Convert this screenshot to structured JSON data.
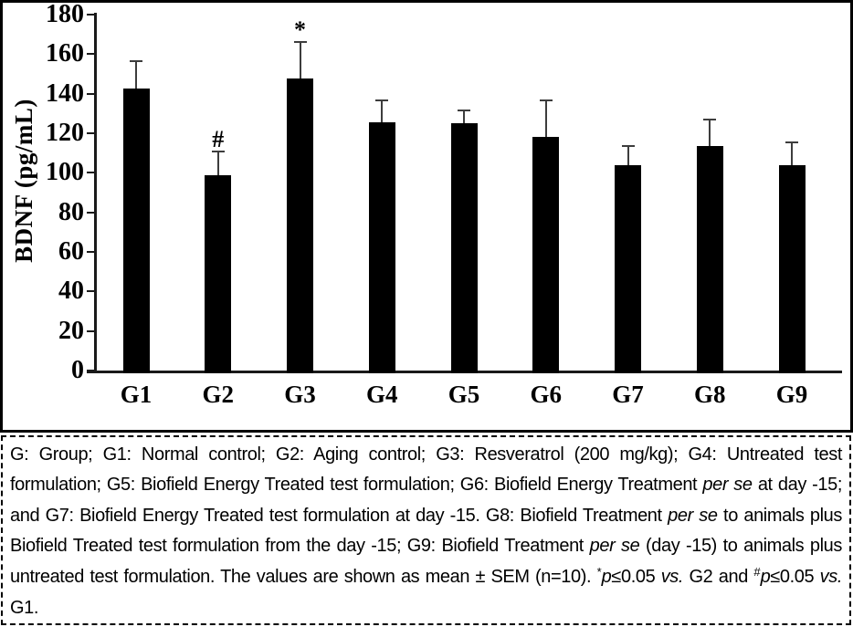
{
  "chart_data": {
    "type": "bar",
    "title": "",
    "ylabel": "BDNF (pg/mL)",
    "xlabel": "",
    "ylim": [
      0,
      180
    ],
    "yticks": [
      0,
      20,
      40,
      60,
      80,
      100,
      120,
      140,
      160,
      180
    ],
    "categories": [
      "G1",
      "G2",
      "G3",
      "G4",
      "G5",
      "G6",
      "G7",
      "G8",
      "G9"
    ],
    "values": [
      142.5,
      99,
      147.5,
      125.5,
      125,
      118,
      104,
      113.5,
      104
    ],
    "errors": [
      14,
      12,
      18.5,
      11,
      6.5,
      18.5,
      9.5,
      13.5,
      11.5
    ],
    "annotations": [
      "",
      "#",
      "*",
      "",
      "",
      "",
      "",
      "",
      ""
    ],
    "bar_color": "#000000",
    "error_bar_color": "#3d3d3d",
    "axis_color": "#1a1a1a",
    "grid": false,
    "legend_position": "none"
  },
  "caption": {
    "segments": [
      {
        "style": "normal",
        "text": "G: Group; G1: Normal control; G2: Aging control; G3: Resveratrol (200 mg/kg); G4: Untreated test formulation; G5: Biofield Energy Treated test formulation; G6: Biofield Energy Treatment "
      },
      {
        "style": "italic",
        "text": "per se"
      },
      {
        "style": "normal",
        "text": " at day -15; and G7: Biofield Energy Treated test formulation at day -15. G8: Biofield Treatment "
      },
      {
        "style": "italic",
        "text": "per se"
      },
      {
        "style": "normal",
        "text": " to animals plus Biofield Treated test formulation from the day -15; G9: Biofield Treatment "
      },
      {
        "style": "italic",
        "text": "per se"
      },
      {
        "style": "normal",
        "text": " (day -15) to animals plus untreated test formulation. The values are shown as mean ± SEM (n=10). "
      },
      {
        "style": "sup",
        "text": "*"
      },
      {
        "style": "italic",
        "text": "p"
      },
      {
        "style": "normal",
        "text": "≤0.05 "
      },
      {
        "style": "italic",
        "text": "vs."
      },
      {
        "style": "normal",
        "text": " G2 and "
      },
      {
        "style": "sup",
        "text": "#"
      },
      {
        "style": "italic",
        "text": "p"
      },
      {
        "style": "normal",
        "text": "≤0.05 "
      },
      {
        "style": "italic",
        "text": "vs."
      },
      {
        "style": "normal",
        "text": " G1."
      }
    ]
  }
}
